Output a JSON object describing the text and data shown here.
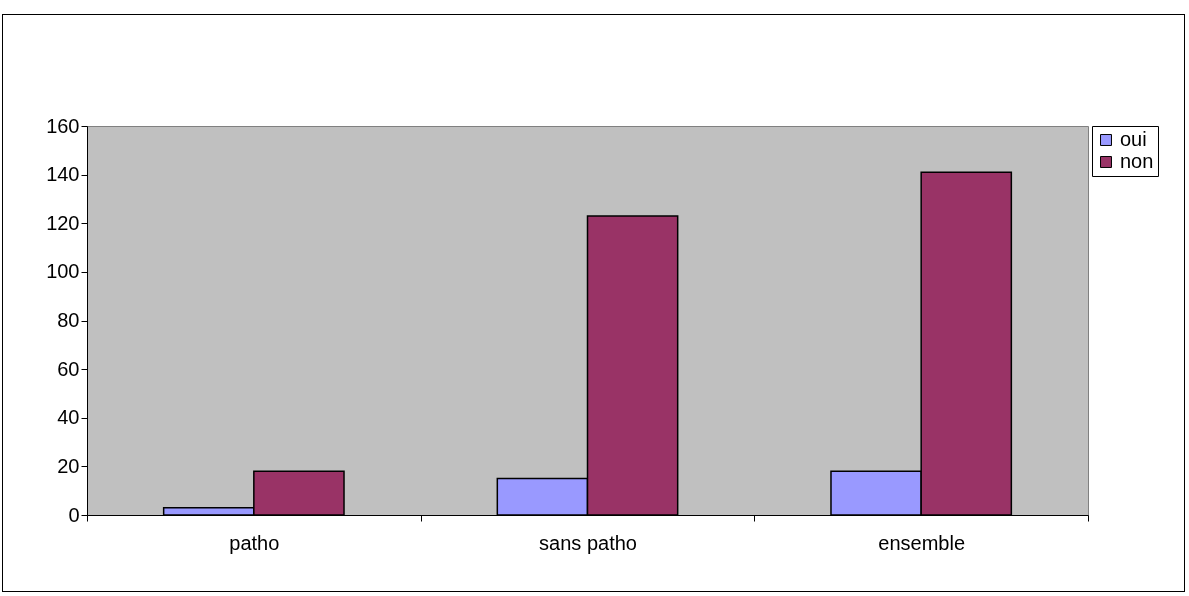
{
  "chart_data": {
    "type": "bar",
    "categories": [
      "patho",
      "sans patho",
      "ensemble"
    ],
    "series": [
      {
        "name": "oui",
        "color": "#9999ff",
        "values": [
          3,
          15,
          18
        ]
      },
      {
        "name": "non",
        "color": "#993366",
        "values": [
          18,
          123,
          141
        ]
      }
    ],
    "ylim": [
      0,
      160
    ],
    "yticks": [
      0,
      20,
      40,
      60,
      80,
      100,
      120,
      140,
      160
    ],
    "grid": false,
    "legend": "right"
  }
}
